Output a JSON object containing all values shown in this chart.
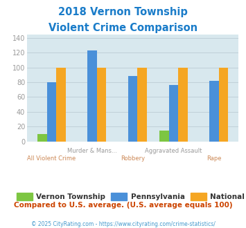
{
  "title_line1": "2018 Vernon Township",
  "title_line2": "Violent Crime Comparison",
  "categories": [
    "All Violent Crime",
    "Murder & Mans...",
    "Robbery",
    "Aggravated Assault",
    "Rape"
  ],
  "vernon": [
    10,
    0,
    0,
    15,
    0
  ],
  "pennsylvania": [
    80,
    123,
    88,
    76,
    82
  ],
  "national": [
    100,
    100,
    100,
    100,
    100
  ],
  "color_vernon": "#7DC642",
  "color_pennsylvania": "#4A90D9",
  "color_national": "#F5A623",
  "ylim": [
    0,
    145
  ],
  "yticks": [
    0,
    20,
    40,
    60,
    80,
    100,
    120,
    140
  ],
  "bg_color": "#D8E8EE",
  "legend_labels": [
    "Vernon Township",
    "Pennsylvania",
    "National"
  ],
  "footer_text": "Compared to U.S. average. (U.S. average equals 100)",
  "copyright_text": "© 2025 CityRating.com - https://www.cityrating.com/crime-statistics/",
  "title_color": "#1A7CC9",
  "footer_color": "#CC4400",
  "copyright_color": "#4499CC",
  "tick_color": "#999999",
  "xtick_color_top": "#999999",
  "xtick_color_bot": "#CC8855",
  "grid_color": "#C0D0D8",
  "label_top": [
    "",
    "Murder & Mans...",
    "",
    "Aggravated Assault",
    ""
  ],
  "label_bot": [
    "All Violent Crime",
    "",
    "Robbery",
    "",
    "Rape"
  ]
}
